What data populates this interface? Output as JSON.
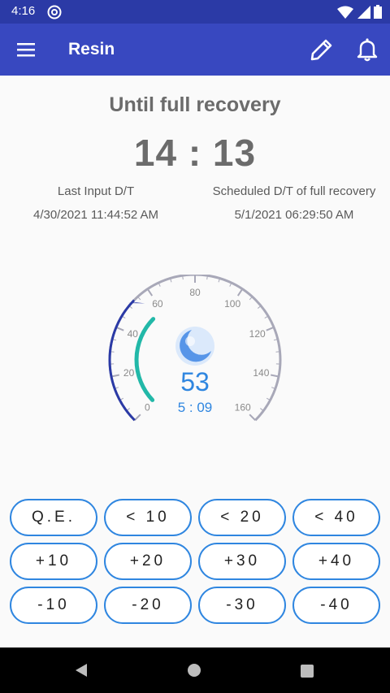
{
  "status_bar": {
    "time": "4:16",
    "left_icon": "at-sign-icon",
    "right_icons": [
      "wifi-icon",
      "signal-icon",
      "battery-icon"
    ]
  },
  "app_bar": {
    "title": "Resin",
    "menu_icon": "menu-icon",
    "edit_icon": "pencil-icon",
    "bell_icon": "bell-icon"
  },
  "summary": {
    "heading": "Until full recovery",
    "remaining": "14 : 13",
    "last_input_label": "Last Input D/T",
    "last_input_value": "4/30/2021 11:44:52 AM",
    "scheduled_label": "Scheduled D/T of full recovery",
    "scheduled_value": "5/1/2021 06:29:50 AM"
  },
  "gauge": {
    "value": "53",
    "next_timer": "5 : 09",
    "current": 53,
    "max": 160,
    "ticks": [
      "0",
      "20",
      "40",
      "60",
      "80",
      "100",
      "120",
      "140",
      "160"
    ],
    "icon": "crescent-moon-icon",
    "colors": {
      "scale": "#a8a8b8",
      "marker_arc": "#2b3aa6",
      "value_arc": "#22b8a8",
      "value_text": "#2f86e0"
    }
  },
  "buttons": [
    [
      "Q.E.",
      "< 10",
      "< 20",
      "< 40"
    ],
    [
      "+10",
      "+20",
      "+30",
      "+40"
    ],
    [
      "-10",
      "-20",
      "-30",
      "-40"
    ]
  ],
  "nav_bar": {
    "back_icon": "back-triangle-icon",
    "home_icon": "home-circle-icon",
    "recent_icon": "recent-square-icon"
  }
}
